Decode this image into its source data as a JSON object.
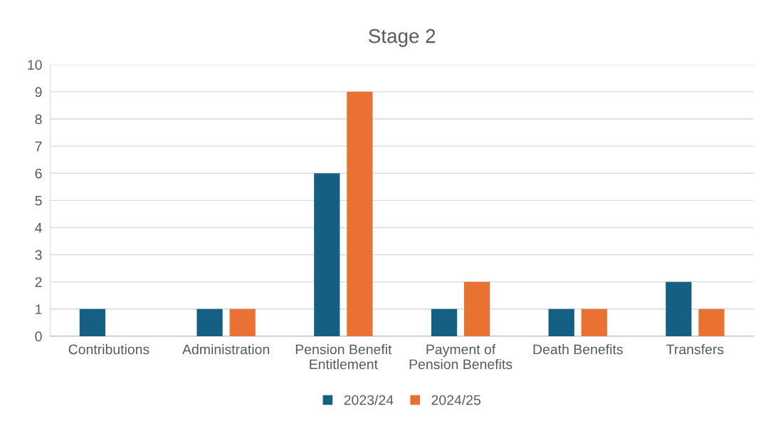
{
  "chart_data": {
    "type": "bar",
    "title": "Stage 2",
    "categories": [
      "Contributions",
      "Administration",
      "Pension Benefit Entitlement",
      "Payment of Pension Benefits",
      "Death Benefits",
      "Transfers"
    ],
    "series": [
      {
        "name": "2023/24",
        "color": "#156082",
        "values": [
          1,
          1,
          6,
          1,
          1,
          2
        ]
      },
      {
        "name": "2024/25",
        "color": "#e97132",
        "values": [
          0,
          1,
          9,
          2,
          1,
          1
        ]
      }
    ],
    "ylim": [
      0,
      10
    ],
    "yticks": [
      0,
      1,
      2,
      3,
      4,
      5,
      6,
      7,
      8,
      9,
      10
    ],
    "grid": "y",
    "legend": "bottom"
  }
}
